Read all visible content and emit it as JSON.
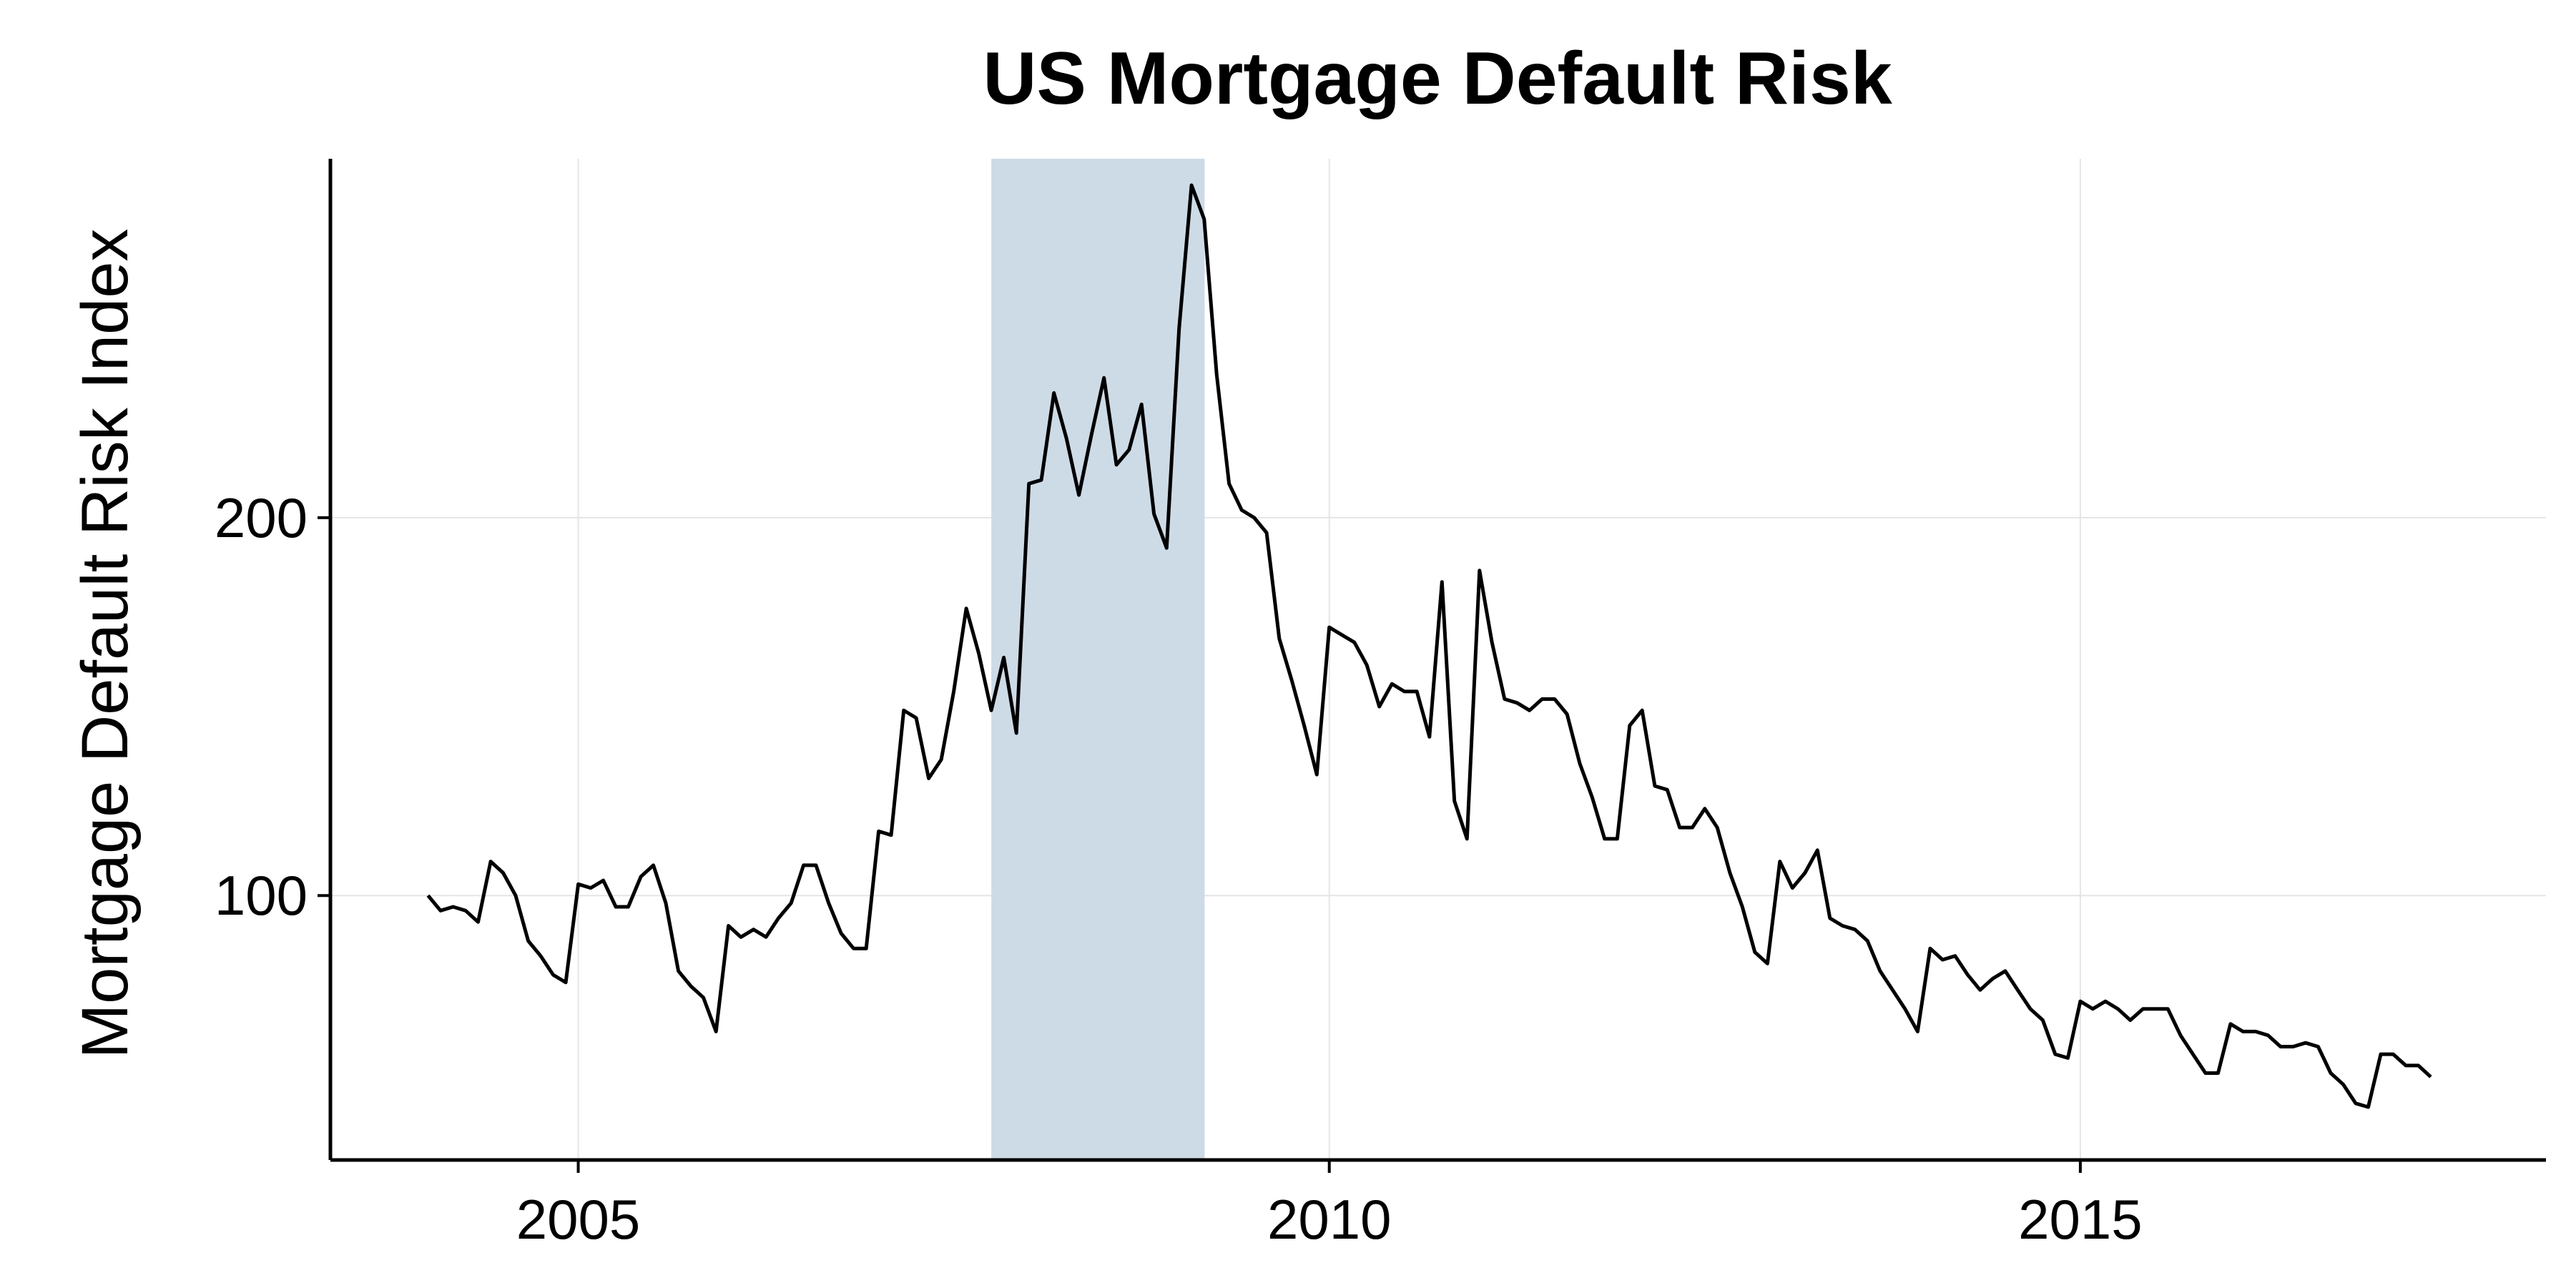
{
  "chart_data": {
    "type": "line",
    "title": "US Mortgage Default Risk",
    "xlabel": "",
    "ylabel": "Mortgage Default Risk Index",
    "xlim": [
      2003.35,
      2018.1
    ],
    "ylim": [
      30,
      295
    ],
    "x_ticks": [
      2005,
      2010,
      2015
    ],
    "y_ticks": [
      100,
      200
    ],
    "grid": true,
    "colors": {
      "line": "#000000",
      "band": "#cddbe7",
      "grid": "#e5e5e5"
    },
    "shaded_periods": [
      {
        "start": 2007.75,
        "end": 2009.17
      }
    ],
    "series": [
      {
        "x": [
          2004.0,
          2004.083,
          2004.167,
          2004.25,
          2004.333,
          2004.417,
          2004.5,
          2004.583,
          2004.667,
          2004.75,
          2004.833,
          2004.917,
          2005.0,
          2005.083,
          2005.167,
          2005.25,
          2005.333,
          2005.417,
          2005.5,
          2005.583,
          2005.667,
          2005.75,
          2005.833,
          2005.917,
          2006.0,
          2006.083,
          2006.167,
          2006.25,
          2006.333,
          2006.417,
          2006.5,
          2006.583,
          2006.667,
          2006.75,
          2006.833,
          2006.917,
          2007.0,
          2007.083,
          2007.167,
          2007.25,
          2007.333,
          2007.417,
          2007.5,
          2007.583,
          2007.667,
          2007.75,
          2007.833,
          2007.917,
          2008.0,
          2008.083,
          2008.167,
          2008.25,
          2008.333,
          2008.417,
          2008.5,
          2008.583,
          2008.667,
          2008.75,
          2008.833,
          2008.917,
          2009.0,
          2009.083,
          2009.167,
          2009.25,
          2009.333,
          2009.417,
          2009.5,
          2009.583,
          2009.667,
          2009.75,
          2009.833,
          2009.917,
          2010.0,
          2010.083,
          2010.167,
          2010.25,
          2010.333,
          2010.417,
          2010.5,
          2010.583,
          2010.667,
          2010.75,
          2010.833,
          2010.917,
          2011.0,
          2011.083,
          2011.167,
          2011.25,
          2011.333,
          2011.417,
          2011.5,
          2011.583,
          2011.667,
          2011.75,
          2011.833,
          2011.917,
          2012.0,
          2012.083,
          2012.167,
          2012.25,
          2012.333,
          2012.417,
          2012.5,
          2012.583,
          2012.667,
          2012.75,
          2012.833,
          2012.917,
          2013.0,
          2013.083,
          2013.167,
          2013.25,
          2013.333,
          2013.417,
          2013.5,
          2013.583,
          2013.667,
          2013.75,
          2013.833,
          2013.917,
          2014.0,
          2014.083,
          2014.167,
          2014.25,
          2014.333,
          2014.417,
          2014.5,
          2014.583,
          2014.667,
          2014.75,
          2014.833,
          2014.917,
          2015.0,
          2015.083,
          2015.167,
          2015.25,
          2015.333,
          2015.417,
          2015.5,
          2015.583,
          2015.667,
          2015.75,
          2015.833,
          2015.917,
          2016.0,
          2016.083,
          2016.167,
          2016.25,
          2016.333,
          2016.417,
          2016.5,
          2016.583,
          2016.667,
          2016.75,
          2016.833,
          2016.917,
          2017.0,
          2017.083,
          2017.167,
          2017.25,
          2017.333
        ],
        "y": [
          100,
          96,
          97,
          96,
          93,
          109,
          106,
          100,
          88,
          84,
          79,
          77,
          103,
          102,
          104,
          97,
          97,
          105,
          108,
          98,
          80,
          76,
          73,
          64,
          92,
          89,
          91,
          89,
          94,
          98,
          108,
          108,
          98,
          90,
          86,
          86,
          117,
          116,
          149,
          147,
          131,
          136,
          154,
          176,
          164,
          149,
          163,
          143,
          209,
          210,
          233,
          221,
          206,
          222,
          237,
          214,
          218,
          230,
          201,
          192,
          250,
          288,
          279,
          238,
          209,
          202,
          200,
          196,
          168,
          157,
          145,
          132,
          171,
          169,
          167,
          161,
          150,
          156,
          154,
          154,
          142,
          183,
          125,
          115,
          186,
          167,
          152,
          151,
          149,
          152,
          152,
          148,
          135,
          126,
          115,
          115,
          145,
          149,
          129,
          128,
          118,
          118,
          123,
          118,
          106,
          97,
          85,
          82,
          109,
          102,
          106,
          112,
          94,
          92,
          91,
          88,
          80,
          75,
          70,
          64,
          86,
          83,
          84,
          79,
          75,
          78,
          80,
          75,
          70,
          67,
          58,
          57,
          72,
          70,
          72,
          70,
          67,
          70,
          70,
          70,
          63,
          58,
          53,
          53,
          66,
          64,
          64,
          63,
          60,
          60,
          61,
          60,
          53,
          50,
          45,
          44,
          58,
          58,
          55,
          55,
          52
        ]
      }
    ]
  }
}
